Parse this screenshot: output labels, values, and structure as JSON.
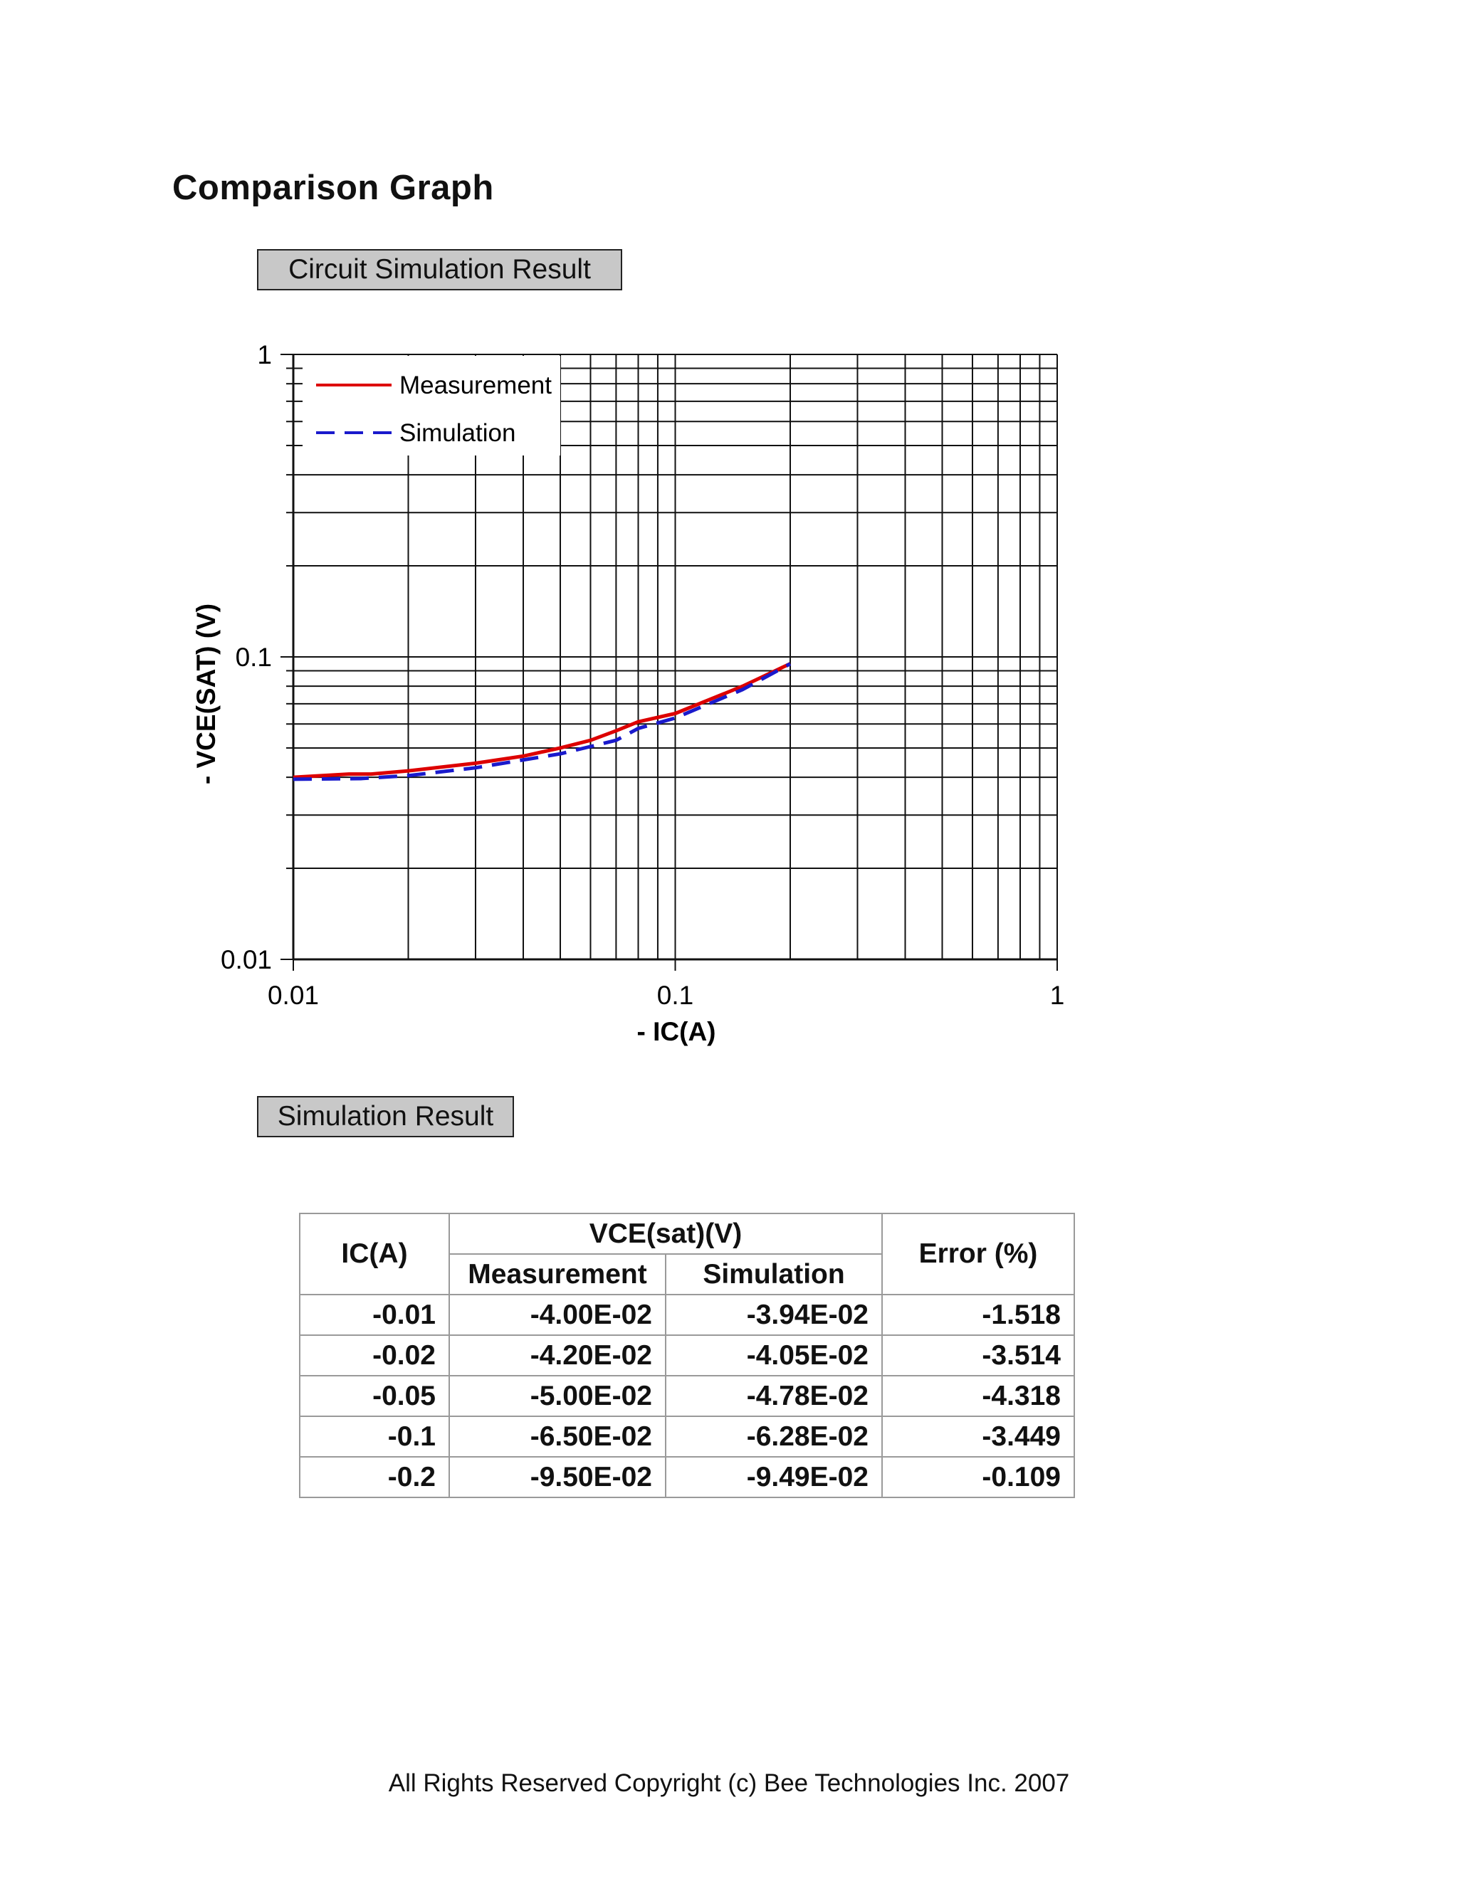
{
  "page": {
    "title": "Comparison Graph",
    "circuit_label": "Circuit Simulation Result",
    "result_label": "Simulation Result",
    "copyright": "All Rights Reserved Copyright (c) Bee Technologies Inc. 2007"
  },
  "chart_data": {
    "type": "line",
    "xlabel": "- IC(A)",
    "ylabel": "- VCE(SAT) (V)",
    "xscale": "log",
    "yscale": "log",
    "xlim": [
      0.01,
      1
    ],
    "ylim": [
      0.01,
      1
    ],
    "x_ticks": [
      "0.01",
      "0.1",
      "1"
    ],
    "y_ticks": [
      "0.01",
      "0.1",
      "1"
    ],
    "grid": true,
    "legend_position": "top-left",
    "series": [
      {
        "name": "Measurement",
        "color": "#dd0000",
        "style": "solid",
        "x": [
          0.01,
          0.014,
          0.016,
          0.02,
          0.03,
          0.04,
          0.05,
          0.06,
          0.07,
          0.08,
          0.1,
          0.15,
          0.2
        ],
        "y": [
          0.04,
          0.041,
          0.041,
          0.042,
          0.0445,
          0.047,
          0.05,
          0.053,
          0.057,
          0.061,
          0.065,
          0.08,
          0.095
        ]
      },
      {
        "name": "Simulation",
        "color": "#1a1acc",
        "style": "dashed",
        "x": [
          0.01,
          0.015,
          0.02,
          0.03,
          0.05,
          0.07,
          0.08,
          0.1,
          0.15,
          0.2
        ],
        "y": [
          0.0394,
          0.0396,
          0.0405,
          0.043,
          0.0478,
          0.053,
          0.058,
          0.0628,
          0.078,
          0.0949
        ]
      }
    ]
  },
  "table": {
    "header_ic": "IC(A)",
    "header_vce": "VCE(sat)(V)",
    "header_meas": "Measurement",
    "header_sim": "Simulation",
    "header_err": "Error (%)",
    "rows": [
      {
        "ic": "-0.01",
        "meas": "-4.00E-02",
        "sim": "-3.94E-02",
        "err": "-1.518"
      },
      {
        "ic": "-0.02",
        "meas": "-4.20E-02",
        "sim": "-4.05E-02",
        "err": "-3.514"
      },
      {
        "ic": "-0.05",
        "meas": "-5.00E-02",
        "sim": "-4.78E-02",
        "err": "-4.318"
      },
      {
        "ic": "-0.1",
        "meas": "-6.50E-02",
        "sim": "-6.28E-02",
        "err": "-3.449"
      },
      {
        "ic": "-0.2",
        "meas": "-9.50E-02",
        "sim": "-9.49E-02",
        "err": "-0.109"
      }
    ]
  }
}
